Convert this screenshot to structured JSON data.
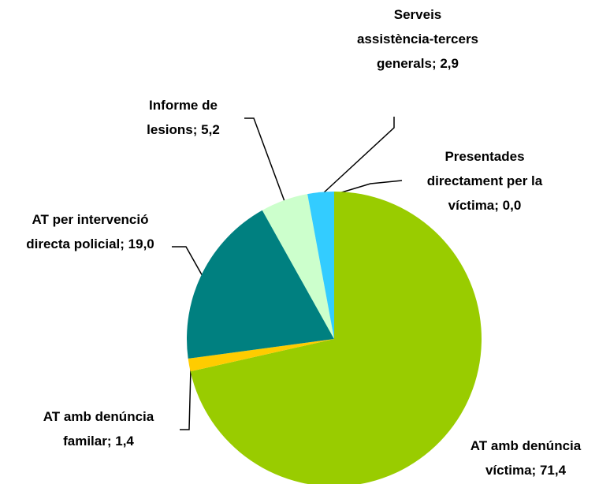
{
  "chart_data": {
    "type": "pie",
    "categories": [
      "Presentades directament per la víctima",
      "AT amb denúncia víctima",
      "AT amb denúncia familar",
      "AT per intervenció directa policial",
      "Informe de lesions",
      "Serveis assistència-tercers generals"
    ],
    "values": [
      0.0,
      71.4,
      1.4,
      19.0,
      5.2,
      2.9
    ],
    "value_labels": [
      "0,0",
      "71,4",
      "1,4",
      "19,0",
      "5,2",
      "2,9"
    ],
    "label_separator": ";",
    "colors": [
      "#99ccff",
      "#99cc00",
      "#ffcc00",
      "#008080",
      "#ccffcc",
      "#33ccff"
    ]
  }
}
